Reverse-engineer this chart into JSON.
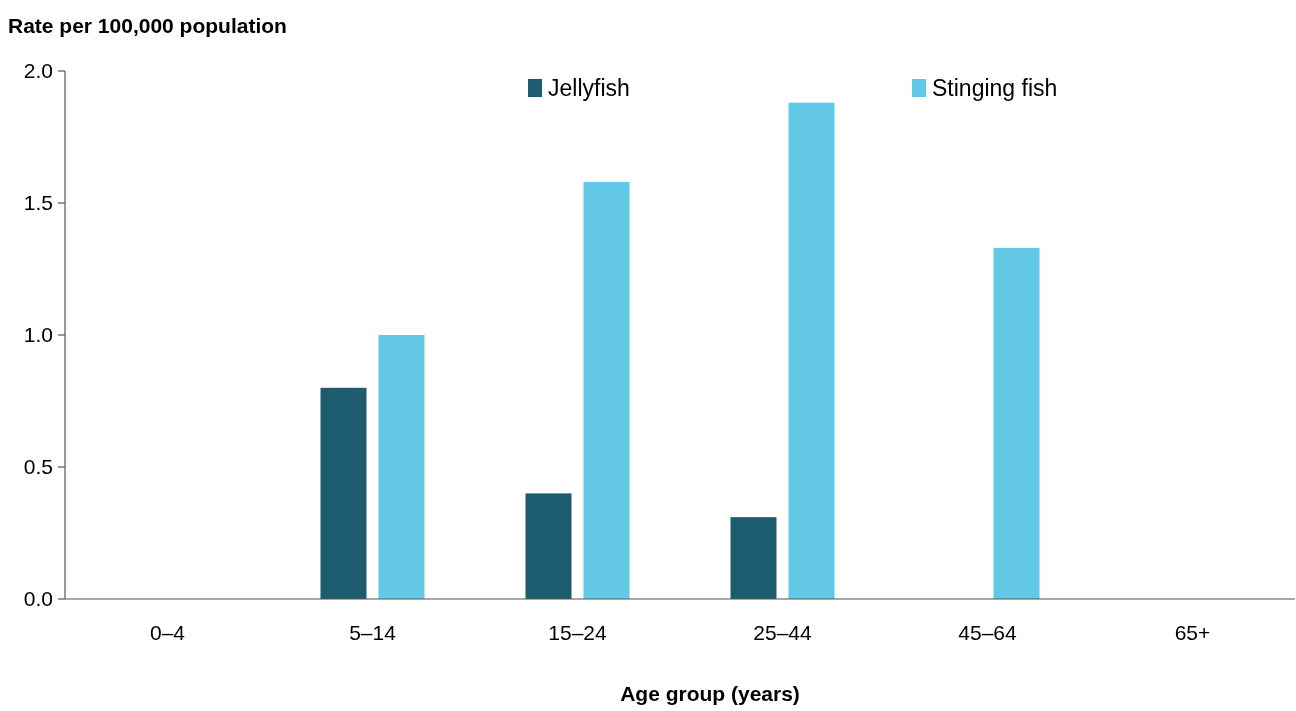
{
  "chart_data": {
    "type": "bar",
    "xlabel": "Age group (years)",
    "ylabel": "Rate per 100,000 population",
    "categories": [
      "0–4",
      "5–14",
      "15–24",
      "25–44",
      "45–64",
      "65+"
    ],
    "series": [
      {
        "name": "Jellyfish",
        "color": "#1d5b6e",
        "values": [
          0,
          0.8,
          0.4,
          0.31,
          0,
          0
        ]
      },
      {
        "name": "Stinging fish",
        "color": "#62c8e6",
        "values": [
          0,
          1.0,
          1.58,
          1.88,
          1.33,
          0
        ]
      }
    ],
    "ylim": [
      0,
      2
    ],
    "yticks": [
      {
        "value": 0,
        "label": "0.0"
      },
      {
        "value": 0.5,
        "label": "0.5"
      },
      {
        "value": 1,
        "label": "1.0"
      },
      {
        "value": 1.5,
        "label": "1.5"
      },
      {
        "value": 2,
        "label": "2.0"
      }
    ],
    "legend": "top",
    "grid": false
  }
}
